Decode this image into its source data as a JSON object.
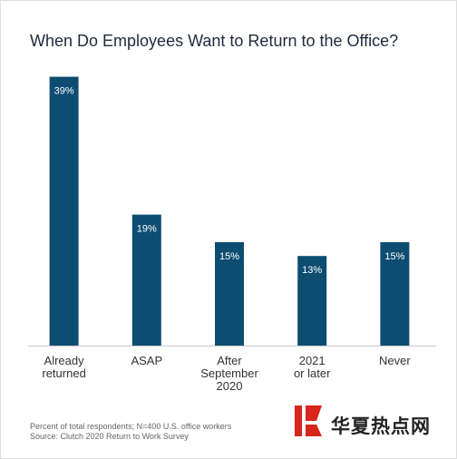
{
  "chart_data": {
    "type": "bar",
    "title": "When Do Employees Want to Return to the Office?",
    "categories": [
      "Already\nreturned",
      "ASAP",
      "After\nSeptember\n2020",
      "2021\nor later",
      "Never"
    ],
    "values": [
      39,
      19,
      15,
      13,
      15
    ],
    "value_labels": [
      "39%",
      "19%",
      "15%",
      "13%",
      "15%"
    ],
    "color": "#0e4d72",
    "notes": [
      "Percent of total respondents; N=400 U.S. office workers",
      "Source: Clutch 2020 Return to Work Survey"
    ]
  },
  "watermark": "华夏热点网"
}
